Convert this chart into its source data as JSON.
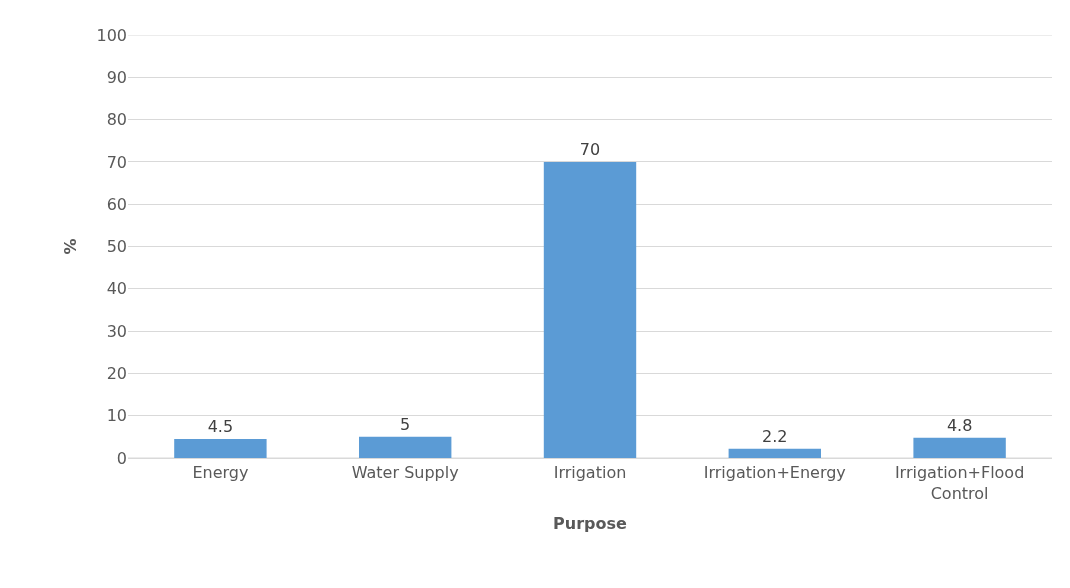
{
  "chart_data": {
    "type": "bar",
    "xlabel": "Purpose",
    "ylabel": "%",
    "categories": [
      "Energy",
      "Water Supply",
      "Irrigation",
      "Irrigation+Energy",
      "Irrigation+Flood Control"
    ],
    "values": [
      4.5,
      5,
      70,
      2.2,
      4.8
    ],
    "color": "#5b9bd5",
    "ylim": [
      0,
      100
    ],
    "yticks": [
      0,
      10,
      20,
      30,
      40,
      50,
      60,
      70,
      80,
      90,
      100
    ],
    "grid": "y",
    "data_labels": true
  }
}
